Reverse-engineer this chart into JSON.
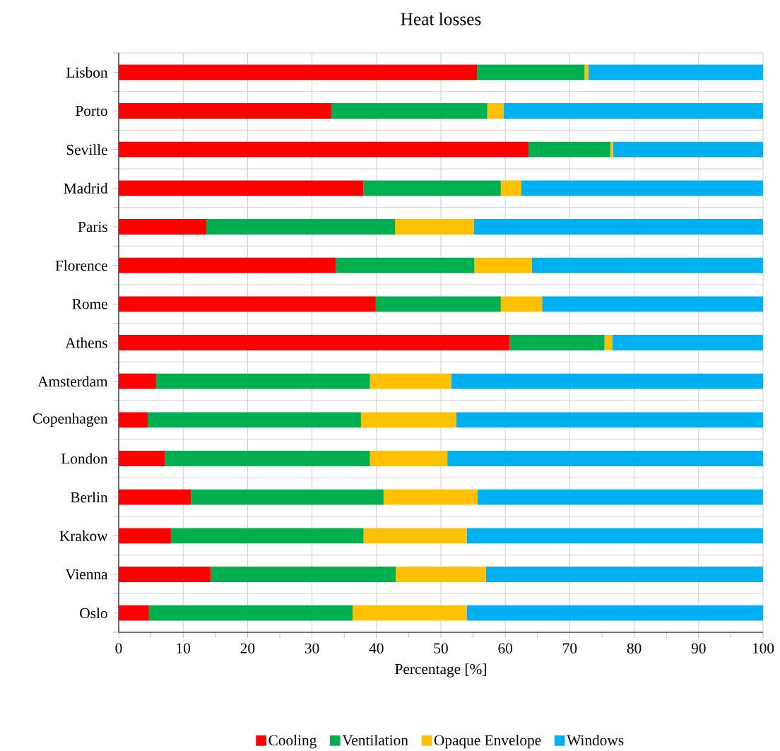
{
  "chart_data": {
    "type": "bar",
    "orientation": "horizontal",
    "stacked": true,
    "title": "Heat losses",
    "xlabel": "Percentage [%]",
    "categories": [
      "Lisbon",
      "Porto",
      "Seville",
      "Madrid",
      "Paris",
      "Florence",
      "Rome",
      "Athens",
      "Amsterdam",
      "Copenhagen",
      "London",
      "Berlin",
      "Krakow",
      "Vienna",
      "Oslo"
    ],
    "series": [
      {
        "name": "Cooling",
        "color": "#ff0000",
        "values": [
          55.6,
          33.0,
          63.6,
          38.0,
          13.6,
          33.7,
          39.9,
          60.7,
          5.8,
          4.5,
          7.2,
          11.2,
          8.1,
          14.3,
          4.7
        ]
      },
      {
        "name": "Ventilation",
        "color": "#00b050",
        "values": [
          16.7,
          24.2,
          12.7,
          21.3,
          29.3,
          21.5,
          19.4,
          14.7,
          33.2,
          33.1,
          31.8,
          29.9,
          29.9,
          28.7,
          31.6
        ]
      },
      {
        "name": "Opaque Envelope",
        "color": "#ffc000",
        "values": [
          0.6,
          2.5,
          0.4,
          3.2,
          12.2,
          8.9,
          6.4,
          1.2,
          12.6,
          14.8,
          12.0,
          14.6,
          16.0,
          14.0,
          17.7
        ]
      },
      {
        "name": "Windows",
        "color": "#00b0f0",
        "values": [
          27.1,
          40.3,
          23.3,
          37.5,
          44.9,
          35.9,
          34.3,
          23.4,
          48.4,
          47.6,
          49.0,
          44.3,
          46.0,
          43.0,
          46.0
        ]
      }
    ],
    "xlim": [
      0,
      100
    ],
    "xticks": [
      0,
      10,
      20,
      30,
      40,
      50,
      60,
      70,
      80,
      90,
      100
    ],
    "grid": true,
    "legend": "bottom"
  }
}
